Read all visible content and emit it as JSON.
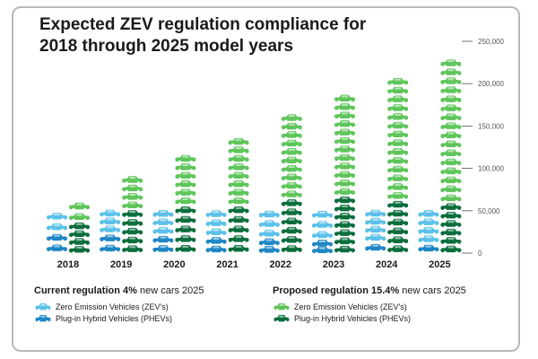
{
  "title_lines": [
    "Expected ZEV regulation compliance for",
    "2018 through 2025 model years"
  ],
  "legend": {
    "current": {
      "label_bold": "Current regulation 4%",
      "label_rest": " new cars 2025",
      "zev_label": "Zero Emission Vehicles (ZEV's)",
      "phev_label": "Plug-in Hybrid Vehicles (PHEVs)"
    },
    "proposed": {
      "label_bold": "Proposed regulation 15.4%",
      "label_rest": " new cars 2025",
      "zev_label": "Zero Emission Vehicles (ZEV's)",
      "phev_label": "Plug-in Hybrid Vehicles (PHEVs)"
    }
  },
  "colors": {
    "current_zev": "#5bc1ea",
    "current_phev": "#1f86c4",
    "proposed_zev": "#5ec55a",
    "proposed_phev": "#0b6e3d",
    "axis_text": "#555555",
    "year_text": "#1a1a1a"
  },
  "chart_data": {
    "type": "bar",
    "title": "Expected ZEV regulation compliance for 2018 through 2025 model years",
    "categories": [
      "2018",
      "2019",
      "2020",
      "2021",
      "2022",
      "2023",
      "2024",
      "2025"
    ],
    "ylim": [
      0,
      250000
    ],
    "yticks": [
      0,
      50000,
      100000,
      150000,
      200000,
      250000
    ],
    "ytick_labels": [
      "0",
      "50,000",
      "100,000",
      "150,000",
      "200,000",
      "250,000"
    ],
    "grid": false,
    "series": [
      {
        "name": "Current regulation 4% new cars 2025 - Zero Emission Vehicles (ZEV's)",
        "values": [
          25000,
          28000,
          30000,
          32000,
          34000,
          36000,
          38000,
          40000
        ]
      },
      {
        "name": "Current regulation 4% new cars 2025 - Plug-in Hybrid Vehicles (PHEVs)",
        "values": [
          25000,
          24000,
          22000,
          20000,
          18000,
          16000,
          14000,
          12000
        ]
      },
      {
        "name": "Proposed regulation 15.4% new cars 2025 - Zero Emission Vehicles (ZEV's)",
        "values": [
          25000,
          40000,
          60000,
          80000,
          100000,
          120000,
          145000,
          170000
        ]
      },
      {
        "name": "Proposed regulation 15.4% new cars 2025 - Plug-in Hybrid Vehicles (PHEVs)",
        "values": [
          37000,
          52000,
          57000,
          57000,
          65000,
          68000,
          63000,
          60000
        ]
      }
    ]
  }
}
